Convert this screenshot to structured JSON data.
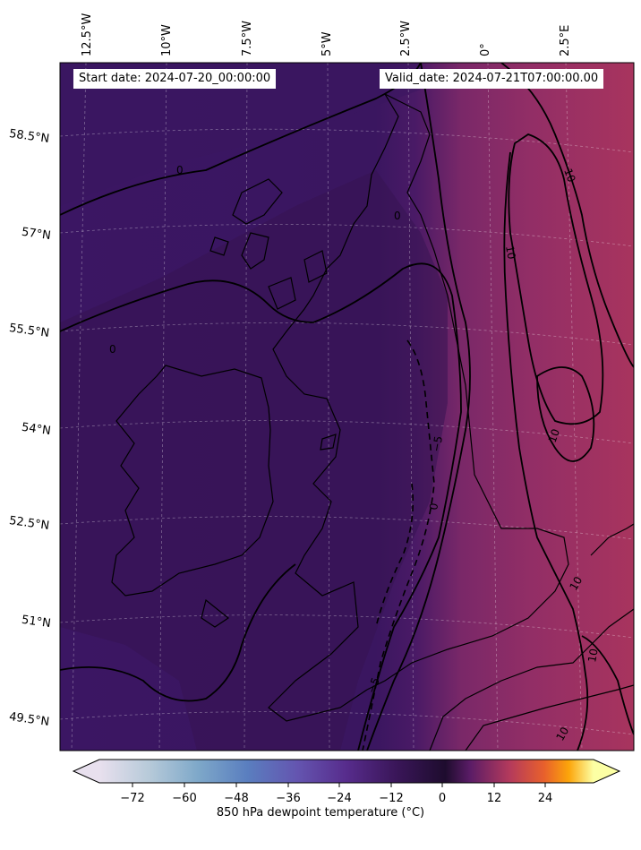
{
  "header": {
    "start_label": "Start date: 2024-07-20_00:00:00",
    "valid_label": "Valid_date: 2024-07-21T07:00:00.00"
  },
  "axes": {
    "lon_ticks": [
      "12.5°W",
      "10°W",
      "7.5°W",
      "5°W",
      "2.5°W",
      "0°",
      "2.5°E"
    ],
    "lat_ticks": [
      "58.5°N",
      "57°N",
      "55.5°N",
      "54°N",
      "52.5°N",
      "51°N",
      "49.5°N"
    ]
  },
  "contours": {
    "labels": [
      "0",
      "0",
      "0",
      "10",
      "10",
      "10",
      "10",
      "10",
      "10",
      "-5",
      "-5",
      "0"
    ]
  },
  "colorbar": {
    "label": "850 hPa dewpoint temperature ($^\\circ$C)",
    "label_display": "850 hPa dewpoint temperature (°C)",
    "ticks": [
      "-72",
      "-60",
      "-48",
      "-36",
      "-24",
      "-12",
      "0",
      "12",
      "24"
    ],
    "tick_values": [
      -72,
      -60,
      -48,
      -36,
      -24,
      -12,
      0,
      12,
      24
    ],
    "range": [
      -84,
      36
    ],
    "cmap": "lavender-blue-purple-black-magenta-orange-yellow"
  },
  "colors": {
    "west_field": "#3e1766",
    "west_field_dark": "#351452",
    "east_field": "#8c2d67",
    "east_field_warm": "#a6335f",
    "coast": "#000000",
    "contour": "#000000"
  }
}
